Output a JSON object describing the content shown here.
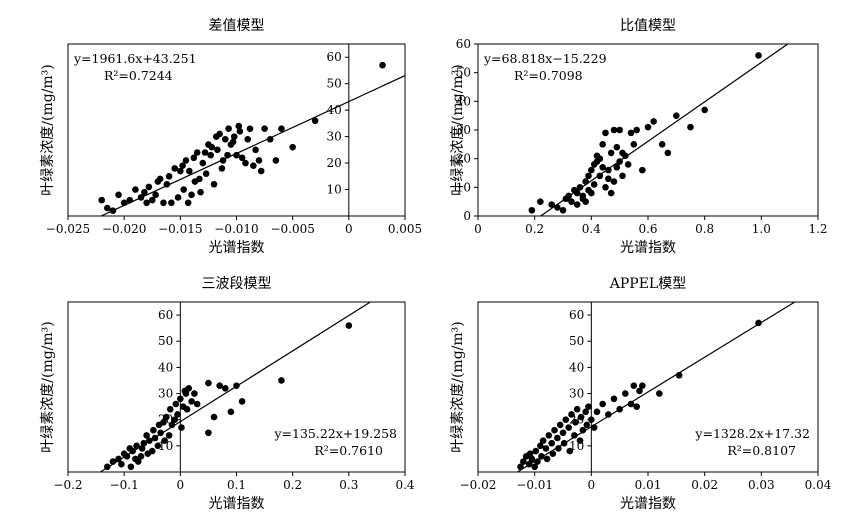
{
  "chart_data": [
    {
      "type": "scatter",
      "title": "差值模型",
      "xlabel": "光谱指数",
      "ylabel": "叶绿素浓度/(mg/m³)",
      "xlim": [
        -0.025,
        0.005
      ],
      "ylim": [
        0,
        65
      ],
      "xticks": [
        -0.025,
        -0.02,
        -0.015,
        -0.01,
        -0.005,
        0,
        0.005
      ],
      "xtick_labels": [
        "−0.025",
        "−0.020",
        "−0.015",
        "−0.010",
        "−0.005",
        "0",
        "0.005"
      ],
      "yticks": [
        10,
        20,
        30,
        40,
        50,
        60
      ],
      "ytick_labels": [
        "10",
        "20",
        "30",
        "40",
        "50",
        "60"
      ],
      "y_axis_at_x": 0,
      "equation": "y=1961.6x+43.251",
      "r2": "R²=0.7244",
      "annotation_position": "top-left",
      "fit": {
        "slope": 1961.6,
        "intercept": 43.251
      },
      "x": [
        -0.022,
        -0.0215,
        -0.021,
        -0.0205,
        -0.02,
        -0.0195,
        -0.019,
        -0.0185,
        -0.0182,
        -0.018,
        -0.0178,
        -0.0175,
        -0.0172,
        -0.017,
        -0.0168,
        -0.0165,
        -0.0162,
        -0.016,
        -0.0158,
        -0.0155,
        -0.0152,
        -0.015,
        -0.0148,
        -0.0147,
        -0.0145,
        -0.0143,
        -0.0142,
        -0.014,
        -0.0138,
        -0.0137,
        -0.0135,
        -0.0133,
        -0.0132,
        -0.013,
        -0.0128,
        -0.0127,
        -0.0125,
        -0.0123,
        -0.0122,
        -0.012,
        -0.0118,
        -0.0117,
        -0.0115,
        -0.0113,
        -0.0112,
        -0.011,
        -0.0108,
        -0.0107,
        -0.0105,
        -0.0103,
        -0.0102,
        -0.01,
        -0.0098,
        -0.0097,
        -0.0095,
        -0.0092,
        -0.009,
        -0.0088,
        -0.0085,
        -0.0083,
        -0.008,
        -0.0078,
        -0.0075,
        -0.007,
        -0.0065,
        -0.006,
        -0.005,
        -0.003,
        0.003
      ],
      "y": [
        6,
        3,
        2,
        8,
        5,
        6,
        10,
        7,
        9,
        5,
        11,
        6,
        8,
        13,
        14,
        5,
        12,
        15,
        5,
        18,
        7,
        17,
        19,
        10,
        21,
        5,
        17,
        8,
        22,
        13,
        24,
        14,
        9,
        20,
        24,
        16,
        27,
        23,
        26,
        12,
        30,
        25,
        31,
        18,
        21,
        29,
        23,
        33,
        27,
        28,
        30,
        23,
        34,
        32,
        22,
        20,
        29,
        33,
        19,
        25,
        21,
        17,
        33,
        29,
        21,
        33,
        26,
        36,
        57
      ]
    },
    {
      "type": "scatter",
      "title": "比值模型",
      "xlabel": "光谱指数",
      "ylabel": "叶绿素浓度/(mg/m³)",
      "xlim": [
        0,
        1.2
      ],
      "ylim": [
        0,
        60
      ],
      "xticks": [
        0,
        0.2,
        0.4,
        0.6,
        0.8,
        1.0,
        1.2
      ],
      "xtick_labels": [
        "0",
        "0.2",
        "0.4",
        "0.6",
        "0.8",
        "1.0",
        "1.2"
      ],
      "yticks": [
        0,
        10,
        20,
        30,
        40,
        50,
        60
      ],
      "ytick_labels": [
        "0",
        "10",
        "20",
        "30",
        "40",
        "50",
        "60"
      ],
      "y_axis_at_x": 0,
      "equation": "y=68.818x−15.229",
      "r2": "R²=0.7098",
      "annotation_position": "top-left",
      "fit": {
        "slope": 68.818,
        "intercept": -15.229
      },
      "x": [
        0.19,
        0.22,
        0.26,
        0.28,
        0.3,
        0.31,
        0.32,
        0.33,
        0.34,
        0.35,
        0.35,
        0.36,
        0.37,
        0.37,
        0.38,
        0.38,
        0.39,
        0.39,
        0.4,
        0.4,
        0.41,
        0.41,
        0.42,
        0.42,
        0.43,
        0.43,
        0.44,
        0.44,
        0.45,
        0.45,
        0.46,
        0.46,
        0.47,
        0.47,
        0.48,
        0.48,
        0.49,
        0.49,
        0.5,
        0.5,
        0.51,
        0.51,
        0.52,
        0.53,
        0.54,
        0.55,
        0.56,
        0.58,
        0.6,
        0.62,
        0.65,
        0.67,
        0.7,
        0.75,
        0.8,
        0.99
      ],
      "y": [
        2,
        5,
        4,
        3,
        2,
        6,
        7,
        5,
        9,
        4,
        8,
        10,
        6,
        7,
        12,
        5,
        9,
        14,
        16,
        8,
        18,
        11,
        19,
        21,
        20,
        14,
        17,
        25,
        10,
        29,
        13,
        16,
        22,
        8,
        30,
        12,
        24,
        17,
        19,
        30,
        14,
        22,
        21,
        18,
        29,
        25,
        30,
        16,
        31,
        33,
        25,
        22,
        35,
        31,
        37,
        56
      ]
    },
    {
      "type": "scatter",
      "title": "三波段模型",
      "xlabel": "光谱指数",
      "ylabel": "叶绿素浓度/(mg/m³)",
      "xlim": [
        -0.2,
        0.4
      ],
      "ylim": [
        0,
        65
      ],
      "xticks": [
        -0.2,
        -0.1,
        0,
        0.1,
        0.2,
        0.3,
        0.4
      ],
      "xtick_labels": [
        "−0.2",
        "−0.1",
        "0",
        "0.1",
        "0.2",
        "0.3",
        "0.4"
      ],
      "yticks": [
        10,
        20,
        30,
        40,
        50,
        60
      ],
      "ytick_labels": [
        "10",
        "20",
        "30",
        "40",
        "50",
        "60"
      ],
      "y_axis_at_x": 0,
      "equation": "y=135.22x+19.258",
      "r2": "R²=0.7610",
      "annotation_position": "bottom-right",
      "fit": {
        "slope": 135.22,
        "intercept": 19.258
      },
      "x": [
        -0.13,
        -0.12,
        -0.11,
        -0.105,
        -0.1,
        -0.095,
        -0.09,
        -0.088,
        -0.085,
        -0.08,
        -0.078,
        -0.075,
        -0.07,
        -0.068,
        -0.065,
        -0.06,
        -0.058,
        -0.055,
        -0.05,
        -0.048,
        -0.045,
        -0.04,
        -0.038,
        -0.035,
        -0.03,
        -0.028,
        -0.025,
        -0.02,
        -0.018,
        -0.015,
        -0.01,
        -0.008,
        -0.005,
        0.0,
        0.002,
        0.005,
        0.008,
        0.01,
        0.012,
        0.015,
        0.02,
        0.025,
        0.03,
        0.05,
        0.05,
        0.06,
        0.07,
        0.08,
        0.09,
        0.1,
        0.11,
        0.18,
        0.3
      ],
      "y": [
        2,
        4,
        5,
        3,
        7,
        6,
        9,
        2,
        8,
        5,
        10,
        4,
        6,
        9,
        11,
        14,
        7,
        12,
        8,
        16,
        13,
        10,
        18,
        15,
        19,
        12,
        21,
        14,
        24,
        18,
        20,
        26,
        22,
        28,
        17,
        25,
        31,
        30,
        24,
        32,
        27,
        30,
        26,
        34,
        15,
        21,
        33,
        32,
        23,
        33,
        27,
        35,
        56
      ]
    },
    {
      "type": "scatter",
      "title": "APPEL模型",
      "xlabel": "光谱指数",
      "ylabel": "叶绿素浓度/(mg/m³)",
      "xlim": [
        -0.02,
        0.04
      ],
      "ylim": [
        0,
        65
      ],
      "xticks": [
        -0.02,
        -0.01,
        0,
        0.01,
        0.02,
        0.03,
        0.04
      ],
      "xtick_labels": [
        "−0.02",
        "−0.01",
        "0",
        "0.01",
        "0.02",
        "0.03",
        "0.04"
      ],
      "yticks": [
        10,
        20,
        30,
        40,
        50,
        60
      ],
      "ytick_labels": [
        "10",
        "20",
        "30",
        "40",
        "50",
        "60"
      ],
      "y_axis_at_x": 0,
      "equation": "y=1328.2x+17.32",
      "r2": "R²=0.8107",
      "annotation_position": "bottom-right",
      "fit": {
        "slope": 1328.2,
        "intercept": 17.32
      },
      "x": [
        -0.0125,
        -0.012,
        -0.0115,
        -0.011,
        -0.0108,
        -0.0105,
        -0.01,
        -0.0098,
        -0.0095,
        -0.009,
        -0.0088,
        -0.0085,
        -0.008,
        -0.0078,
        -0.0075,
        -0.007,
        -0.0068,
        -0.0065,
        -0.006,
        -0.0058,
        -0.0055,
        -0.005,
        -0.0048,
        -0.0045,
        -0.004,
        -0.0038,
        -0.0035,
        -0.003,
        -0.0028,
        -0.0025,
        -0.002,
        -0.0018,
        -0.0015,
        -0.001,
        -0.0008,
        -0.0005,
        0.0,
        0.0005,
        0.001,
        0.002,
        0.003,
        0.004,
        0.005,
        0.006,
        0.007,
        0.0075,
        0.008,
        0.0085,
        0.009,
        0.012,
        0.0155,
        0.0295
      ],
      "y": [
        2,
        4,
        6,
        3,
        7,
        5,
        2,
        8,
        4,
        10,
        6,
        12,
        9,
        5,
        14,
        11,
        7,
        16,
        13,
        9,
        18,
        15,
        11,
        20,
        17,
        8,
        22,
        14,
        19,
        24,
        12,
        21,
        16,
        23,
        18,
        25,
        20,
        17,
        23,
        26,
        22,
        28,
        24,
        30,
        26,
        33,
        25,
        31,
        33,
        30,
        37,
        57
      ]
    }
  ]
}
